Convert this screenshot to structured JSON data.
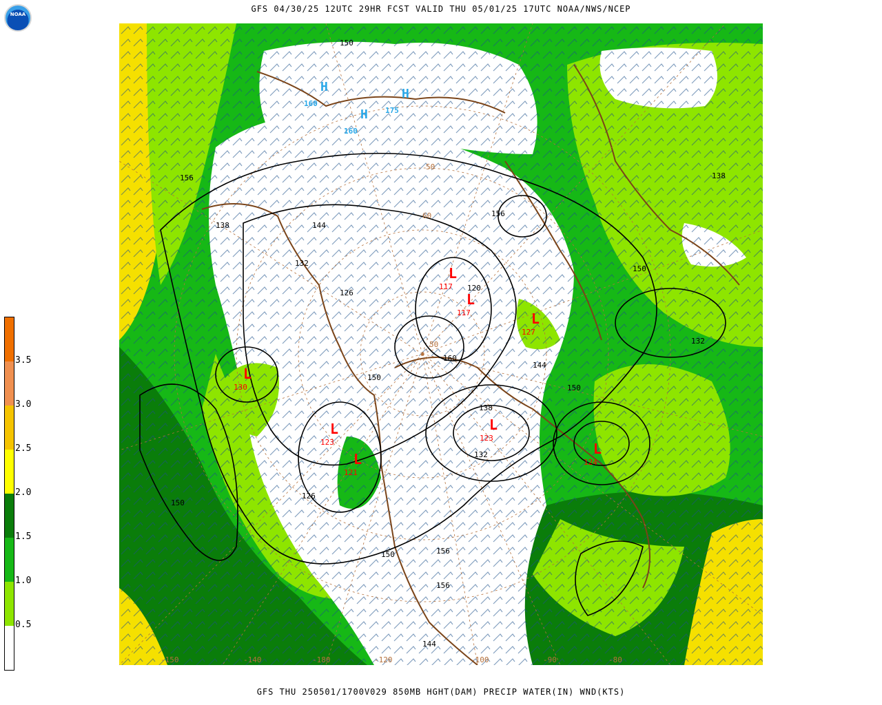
{
  "header": {
    "title": "GFS 04/30/25 12UTC 29HR FCST VALID THU 05/01/25 17UTC NOAA/NWS/NCEP"
  },
  "footer": {
    "caption": "GFS THU 250501/1700V029 850MB HGHT(DAM) PRECIP WATER(IN) WND(KTS)"
  },
  "logo": {
    "text": "NOAA",
    "icon": "noaa-logo-icon"
  },
  "colorbar": {
    "labels": [
      "0.5",
      "1.0",
      "1.5",
      "2.0",
      "2.5",
      "3.0",
      "3.5"
    ],
    "colors": [
      "#ffffff",
      "#8ee500",
      "#16b816",
      "#0a7d0a",
      "#ffff00",
      "#f5c400",
      "#f09050",
      "#f07000"
    ]
  },
  "map": {
    "contour_labels": [
      "150",
      "156",
      "144",
      "138",
      "132",
      "126",
      "120",
      "160",
      "156",
      "150",
      "144",
      "138",
      "132",
      "126",
      "150",
      "156",
      "144",
      "138",
      "132",
      "150",
      "150",
      "156",
      "150"
    ],
    "low_centers": [
      {
        "symbol": "L",
        "value": "117"
      },
      {
        "symbol": "L",
        "value": "117"
      },
      {
        "symbol": "L",
        "value": "127"
      },
      {
        "symbol": "L",
        "value": "130"
      },
      {
        "symbol": "L",
        "value": "123"
      },
      {
        "symbol": "L",
        "value": "121"
      },
      {
        "symbol": "L",
        "value": "123"
      },
      {
        "symbol": "L",
        "value": "124"
      }
    ],
    "high_centers": [
      {
        "symbol": "H",
        "value": "160"
      },
      {
        "symbol": "H",
        "value": "160"
      },
      {
        "symbol": "H",
        "value": "175"
      }
    ],
    "latlon_labels": [
      "-150",
      "-140",
      "-180",
      "-120",
      "-100",
      "-90",
      "-80",
      "50",
      "60",
      "50"
    ]
  }
}
